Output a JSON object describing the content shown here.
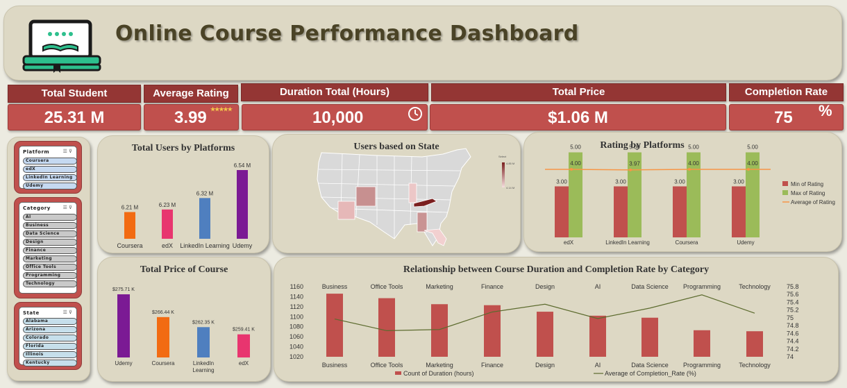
{
  "header": {
    "title": "Online Course Performance Dashboard",
    "logo_icon": "book-screen-icon"
  },
  "kpis": [
    {
      "label": "Total Student",
      "value": "25.31 M"
    },
    {
      "label": "Average Rating",
      "value": "3.99"
    },
    {
      "label": "Duration Total (Hours)",
      "value": "10,000"
    },
    {
      "label": "Total Price",
      "value": "$1.06 M"
    },
    {
      "label": "Completion Rate",
      "value": "75",
      "suffix": "%"
    }
  ],
  "slicers": {
    "platform": {
      "title": "Platform",
      "items": [
        "Coursera",
        "edX",
        "LinkedIn Learning",
        "Udemy"
      ]
    },
    "category": {
      "title": "Category",
      "items": [
        "AI",
        "Business",
        "Data Science",
        "Design",
        "Finance",
        "Marketing",
        "Office Tools",
        "Programming",
        "Technology"
      ]
    },
    "state": {
      "title": "State",
      "items": [
        "Alabama",
        "Arizona",
        "Colorado",
        "Florida",
        "Illinois",
        "Kentucky"
      ]
    }
  },
  "charts": {
    "users_by_platform_title": "Total Users by Platforms",
    "map_title": "Users based on State",
    "map_legend": {
      "title": "Select",
      "max": "4.85 M",
      "min": "4.14 M"
    },
    "rating_title": "Rating by Platforms",
    "price_title": "Total Price of Course",
    "relationship_title": "Relationship between Course Duration and Completion Rate by Category"
  },
  "chart_data": [
    {
      "type": "bar",
      "title": "Total Users by Platforms",
      "categories": [
        "Coursera",
        "edX",
        "LinkedIn Learning",
        "Udemy"
      ],
      "values": [
        6.21,
        6.23,
        6.32,
        6.54
      ],
      "labels": [
        "6.21 M",
        "6.23 M",
        "6.32 M",
        "6.54 M"
      ],
      "colors": [
        "#f26b12",
        "#e8356f",
        "#4f7fbf",
        "#7b1a94"
      ]
    },
    {
      "type": "bar",
      "title": "Rating by Platforms",
      "categories": [
        "edX",
        "LinkedIn Learning",
        "Coursera",
        "Udemy"
      ],
      "series": [
        {
          "name": "Min of Rating",
          "values": [
            3.0,
            3.0,
            3.0,
            3.0
          ],
          "color": "#c0504d"
        },
        {
          "name": "Max of Rating",
          "values": [
            5.0,
            5.0,
            5.0,
            5.0
          ],
          "color": "#9bbb59"
        },
        {
          "name": "Average of Rating",
          "values": [
            4.0,
            3.97,
            4.0,
            4.0
          ],
          "color": "#f79646",
          "type": "line"
        }
      ],
      "value_labels": {
        "min": [
          "3.00",
          "3.00",
          "3.00",
          "3.00"
        ],
        "max": [
          "5.00",
          "5.00",
          "5.00",
          "5.00"
        ],
        "avg": [
          "4.00",
          "3.97",
          "4.00",
          "4.00"
        ]
      },
      "legend": "right"
    },
    {
      "type": "bar",
      "title": "Total Price of Course",
      "categories": [
        "Udemy",
        "Coursera",
        "LinkedIn Learning",
        "edX"
      ],
      "values": [
        275.71,
        266.44,
        262.35,
        259.41
      ],
      "labels": [
        "$275.71 K",
        "$266.44 K",
        "$262.35 K",
        "$259.41 K"
      ],
      "colors": [
        "#7b1a94",
        "#f26b12",
        "#4f7fbf",
        "#e8356f"
      ]
    },
    {
      "type": "bar",
      "title": "Relationship between Course Duration and Completion Rate by Category",
      "categories": [
        "Business",
        "Office Tools",
        "Marketing",
        "Finance",
        "Design",
        "AI",
        "Data Science",
        "Programming",
        "Technology"
      ],
      "series": [
        {
          "name": "Count of Duration (hours)",
          "values": [
            1146,
            1137,
            1125,
            1123,
            1110,
            1102,
            1098,
            1073,
            1071
          ],
          "color": "#c0504d"
        },
        {
          "name": "Average of Completion_Rate (%)",
          "values": [
            74.97,
            74.67,
            74.7,
            75.15,
            75.35,
            74.98,
            75.25,
            75.59,
            75.12
          ],
          "color": "#5c6b2e",
          "type": "line",
          "axis": "right"
        }
      ],
      "ylim": [
        1020,
        1160
      ],
      "y_ticks": [
        "1160",
        "1140",
        "1120",
        "1100",
        "1080",
        "1060",
        "1040",
        "1020"
      ],
      "y2lim": [
        74,
        75.8
      ],
      "y2_ticks": [
        "75.8",
        "75.6",
        "75.4",
        "75.2",
        "75",
        "74.8",
        "74.6",
        "74.4",
        "74.2",
        "74"
      ],
      "legend": "bottom"
    }
  ]
}
